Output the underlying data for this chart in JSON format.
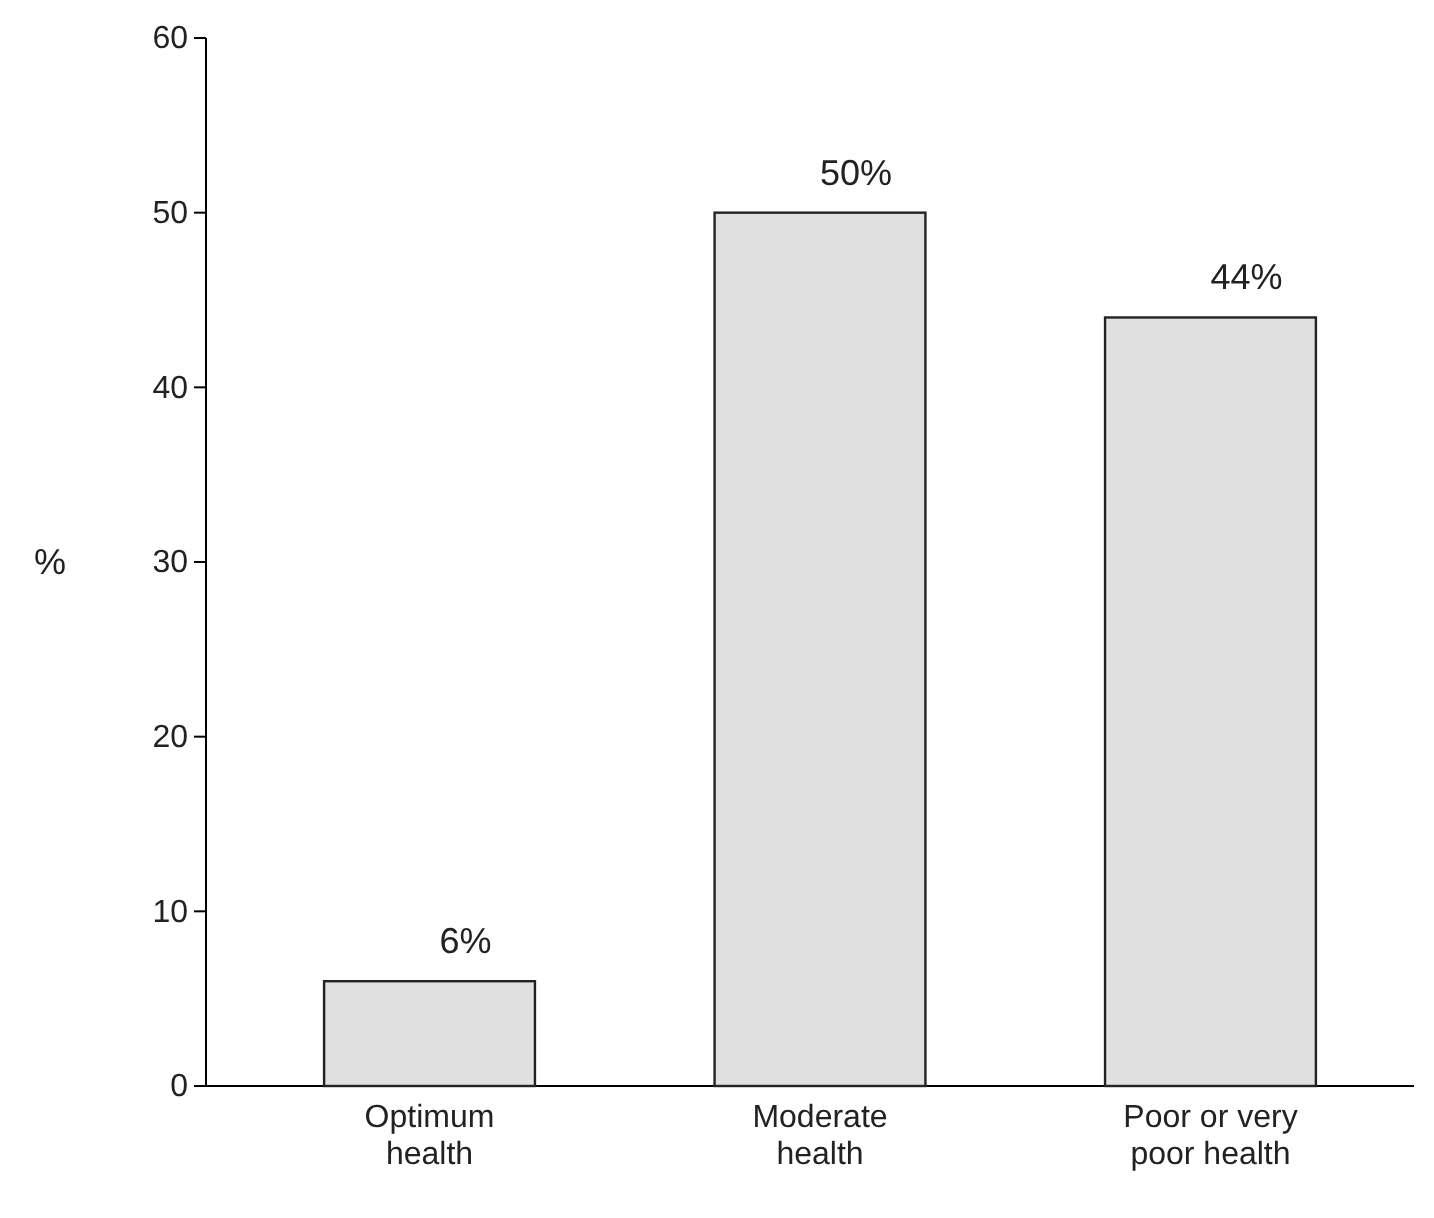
{
  "chart_data": {
    "type": "bar",
    "ylabel": "%",
    "categories": [
      "Optimum health",
      "Moderate health",
      "Poor or very poor health"
    ],
    "values": [
      6,
      50,
      44
    ],
    "value_labels": [
      "6%",
      "50%",
      "44%"
    ],
    "color": "#e0e0e0",
    "ylim": [
      0,
      60
    ],
    "yticks": [
      0,
      10,
      20,
      30,
      40,
      50,
      60
    ],
    "grid": false
  }
}
